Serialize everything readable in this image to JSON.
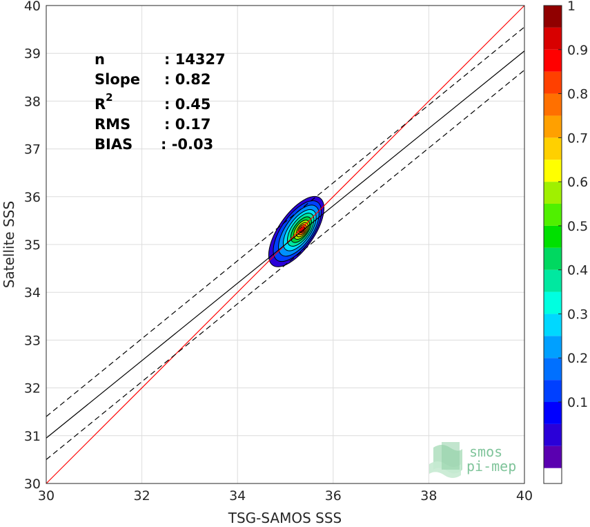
{
  "chart_data": {
    "type": "scatter",
    "subtype": "density-contour",
    "xlabel": "TSG-SAMOS SSS",
    "ylabel": "Satellite SSS",
    "xlim": [
      30,
      40
    ],
    "ylim": [
      30,
      40
    ],
    "xticks": [
      "30",
      "32",
      "34",
      "36",
      "38",
      "40"
    ],
    "yticks": [
      "30",
      "31",
      "32",
      "33",
      "34",
      "35",
      "36",
      "37",
      "38",
      "39",
      "40"
    ],
    "grid": true,
    "stats": [
      {
        "label": "n",
        "value": ": 14327"
      },
      {
        "label": "Slope",
        "value": ": 0.82"
      },
      {
        "label": "R",
        "sup": "2",
        "value": ": 0.45"
      },
      {
        "label": "RMS",
        "value": ": 0.17"
      },
      {
        "label": "BIAS",
        "value": ": -0.03"
      }
    ],
    "lines": [
      {
        "style": "solid",
        "color": "#ff0000",
        "points": [
          [
            30,
            30
          ],
          [
            40,
            40
          ]
        ]
      },
      {
        "style": "solid",
        "color": "#000000",
        "points": [
          [
            30,
            30.95
          ],
          [
            40,
            39.05
          ]
        ]
      },
      {
        "style": "dashed",
        "color": "#000000",
        "points": [
          [
            30,
            31.4
          ],
          [
            40,
            39.55
          ]
        ]
      },
      {
        "style": "dashed",
        "color": "#000000",
        "points": [
          [
            30,
            30.5
          ],
          [
            40,
            38.65
          ]
        ]
      }
    ],
    "density": {
      "center": [
        35.35,
        35.3
      ],
      "rotation_deg": -55,
      "levels": [
        {
          "level": 0.05,
          "rx": 0.86,
          "ry": 0.37,
          "dx": -0.12,
          "dy": -0.03
        },
        {
          "level": 0.1,
          "rx": 0.74,
          "ry": 0.33,
          "dx": -0.1,
          "dy": -0.02
        },
        {
          "level": 0.2,
          "rx": 0.62,
          "ry": 0.28,
          "dx": -0.07,
          "dy": -0.01
        },
        {
          "level": 0.3,
          "rx": 0.5,
          "ry": 0.23,
          "dx": -0.05,
          "dy": 0.0
        },
        {
          "level": 0.4,
          "rx": 0.4,
          "ry": 0.19,
          "dx": -0.03,
          "dy": 0.01
        },
        {
          "level": 0.5,
          "rx": 0.31,
          "ry": 0.15,
          "dx": -0.02,
          "dy": 0.01
        },
        {
          "level": 0.6,
          "rx": 0.23,
          "ry": 0.12,
          "dx": -0.01,
          "dy": 0.01
        },
        {
          "level": 0.7,
          "rx": 0.17,
          "ry": 0.09,
          "dx": 0.0,
          "dy": 0.01
        },
        {
          "level": 0.8,
          "rx": 0.12,
          "ry": 0.07,
          "dx": 0.0,
          "dy": 0.01
        },
        {
          "level": 0.9,
          "rx": 0.07,
          "ry": 0.045,
          "dx": 0.0,
          "dy": 0.01
        }
      ]
    },
    "colorbar": {
      "ticks": [
        "0.1",
        "0.2",
        "0.3",
        "0.4",
        "0.5",
        "0.6",
        "0.7",
        "0.8",
        "0.9",
        "1"
      ],
      "range": [
        0,
        1
      ],
      "colors": [
        "#ffffff",
        "#5a00b0",
        "#2a00d8",
        "#0000ff",
        "#0040ff",
        "#0070ff",
        "#00a0ff",
        "#00d8ff",
        "#00ffe0",
        "#00e8a0",
        "#00d860",
        "#00e000",
        "#50f000",
        "#a0f000",
        "#ffff00",
        "#ffd000",
        "#ffa000",
        "#ff7000",
        "#ff4000",
        "#ff0000",
        "#d80000",
        "#900000"
      ]
    },
    "level_colors": {
      "0.05": "#2a00d8",
      "0.1": "#0040ff",
      "0.2": "#0090ff",
      "0.3": "#00e0ff",
      "0.4": "#00e8a0",
      "0.5": "#00d040",
      "0.6": "#a0f000",
      "0.7": "#ffd000",
      "0.8": "#ff7000",
      "0.9": "#e00000"
    }
  },
  "logo": {
    "line1": "smos",
    "line2": "pi-mep"
  }
}
